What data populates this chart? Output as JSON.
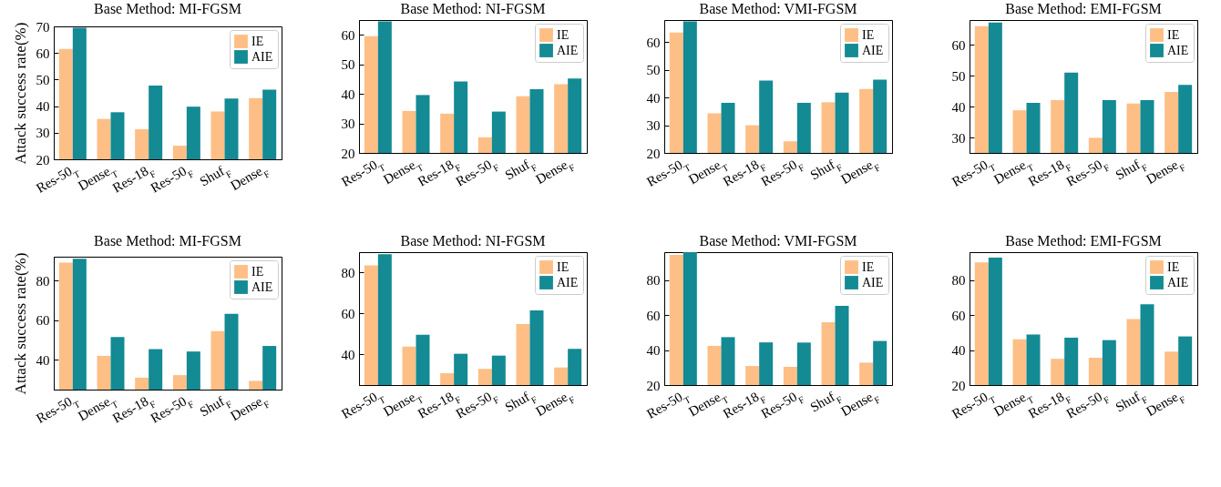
{
  "chart_data": [
    {
      "type": "bar",
      "title": "Base Method:  MI-FGSM",
      "ylabel": "Attack success rate(%)",
      "categories": [
        "Res-50$_{T}$",
        "Dense$_{T}$",
        "Res-18$_{F}$",
        "Res-50$_{F}$",
        "Shuf$_{F}$",
        "Dense$_{F}$"
      ],
      "series": [
        {
          "name": "IE",
          "color": "#fdbf86",
          "values": [
            61.5,
            35.2,
            31.3,
            25.1,
            38,
            43
          ]
        },
        {
          "name": "AIE",
          "color": "#138a94",
          "values": [
            69.5,
            37.7,
            47.7,
            39.8,
            42.9,
            46.2
          ]
        }
      ],
      "ylim": [
        20,
        70
      ],
      "yticks": [
        20,
        30,
        40,
        50,
        60,
        70
      ],
      "legend": "top right"
    },
    {
      "type": "bar",
      "title": "Base Method:  NI-FGSM",
      "categories": [
        "Res-50$_{T}$",
        "Dense$_{T}$",
        "Res-18$_{F}$",
        "Res-50$_{F}$",
        "Shuf$_{F}$",
        "Dense$_{F}$"
      ],
      "series": [
        {
          "name": "IE",
          "color": "#fdbf86",
          "values": [
            59.5,
            34.2,
            33.3,
            25.3,
            39.2,
            43.3
          ]
        },
        {
          "name": "AIE",
          "color": "#138a94",
          "values": [
            64.5,
            39.6,
            44.2,
            34,
            41.6,
            45.2
          ]
        }
      ],
      "ylim": [
        20,
        65
      ],
      "yticks": [
        20,
        30,
        40,
        50,
        60
      ],
      "legend": "top right"
    },
    {
      "type": "bar",
      "title": "Base Method:  VMI-FGSM",
      "categories": [
        "Res-50$_{T}$",
        "Dense$_{T}$",
        "Res-18$_{F}$",
        "Res-50$_{F}$",
        "Shuf$_{F}$",
        "Dense$_{F}$"
      ],
      "series": [
        {
          "name": "IE",
          "color": "#fdbf86",
          "values": [
            63.5,
            34.3,
            30,
            24.2,
            38.3,
            43.1
          ]
        },
        {
          "name": "AIE",
          "color": "#138a94",
          "values": [
            67.5,
            38.1,
            46.1,
            38.1,
            41.8,
            46.5
          ]
        }
      ],
      "ylim": [
        20,
        68
      ],
      "yticks": [
        20,
        30,
        40,
        50,
        60
      ],
      "legend": "top right"
    },
    {
      "type": "bar",
      "title": "Base Method:  EMI-FGSM",
      "categories": [
        "Res-50$_{T}$",
        "Dense$_{T}$",
        "Res-18$_{F}$",
        "Res-50$_{F}$",
        "Shuf$_{F}$",
        "Dense$_{F}$"
      ],
      "series": [
        {
          "name": "IE",
          "color": "#fdbf86",
          "values": [
            66,
            38.8,
            42.1,
            29.9,
            41,
            44.7
          ]
        },
        {
          "name": "AIE",
          "color": "#138a94",
          "values": [
            67.2,
            41.2,
            51,
            42.1,
            42.1,
            47
          ]
        }
      ],
      "ylim": [
        25,
        68
      ],
      "yticks": [
        30,
        40,
        50,
        60
      ],
      "legend": "top right"
    },
    {
      "type": "bar",
      "title": "Base Method:  MI-FGSM",
      "ylabel": "Attack success rate(%)",
      "categories": [
        "Res-50$_{T}$",
        "Dense$_{T}$",
        "Res-18$_{F}$",
        "Res-50$_{F}$",
        "Shuf$_{F}$",
        "Dense$_{F}$"
      ],
      "series": [
        {
          "name": "IE",
          "color": "#fdbf86",
          "values": [
            89,
            42,
            31,
            32.3,
            54.5,
            29.4
          ]
        },
        {
          "name": "AIE",
          "color": "#138a94",
          "values": [
            91,
            51.5,
            45.4,
            44.2,
            63.2,
            47
          ]
        }
      ],
      "ylim": [
        25,
        92
      ],
      "yticks": [
        40,
        60,
        80
      ],
      "legend": "top right"
    },
    {
      "type": "bar",
      "title": "Base Method:  NI-FGSM",
      "categories": [
        "Res-50$_{T}$",
        "Dense$_{T}$",
        "Res-18$_{F}$",
        "Res-50$_{F}$",
        "Shuf$_{F}$",
        "Dense$_{F}$"
      ],
      "series": [
        {
          "name": "IE",
          "color": "#fdbf86",
          "values": [
            83.5,
            43.8,
            30.8,
            32.9,
            54.8,
            33.6
          ]
        },
        {
          "name": "AIE",
          "color": "#138a94",
          "values": [
            89,
            49.6,
            40.3,
            39.4,
            61.5,
            42.7
          ]
        }
      ],
      "ylim": [
        25,
        90
      ],
      "yticks": [
        40,
        60,
        80
      ],
      "legend": "top right"
    },
    {
      "type": "bar",
      "title": "Base Method:  VMI-FGSM",
      "categories": [
        "Res-50$_{T}$",
        "Dense$_{T}$",
        "Res-18$_{F}$",
        "Res-50$_{F}$",
        "Shuf$_{F}$",
        "Dense$_{F}$"
      ],
      "series": [
        {
          "name": "IE",
          "color": "#fdbf86",
          "values": [
            94.5,
            42.4,
            30.9,
            30.4,
            55.9,
            32.8
          ]
        },
        {
          "name": "AIE",
          "color": "#138a94",
          "values": [
            96,
            47.4,
            44.4,
            44.3,
            65.3,
            45.2
          ]
        }
      ],
      "ylim": [
        20,
        96
      ],
      "yticks": [
        20,
        40,
        60,
        80
      ],
      "legend": "top right"
    },
    {
      "type": "bar",
      "title": "Base Method:  EMI-FGSM",
      "categories": [
        "Res-50$_{T}$",
        "Dense$_{T}$",
        "Res-18$_{F}$",
        "Res-50$_{F}$",
        "Shuf$_{F}$",
        "Dense$_{F}$"
      ],
      "series": [
        {
          "name": "IE",
          "color": "#fdbf86",
          "values": [
            90.2,
            46.2,
            35,
            35.6,
            57.7,
            39.1
          ]
        },
        {
          "name": "AIE",
          "color": "#138a94",
          "values": [
            92.9,
            48.9,
            47.1,
            45.7,
            66.2,
            47.8
          ]
        }
      ],
      "ylim": [
        20,
        96
      ],
      "yticks": [
        20,
        40,
        60,
        80
      ],
      "legend": "top right"
    }
  ]
}
